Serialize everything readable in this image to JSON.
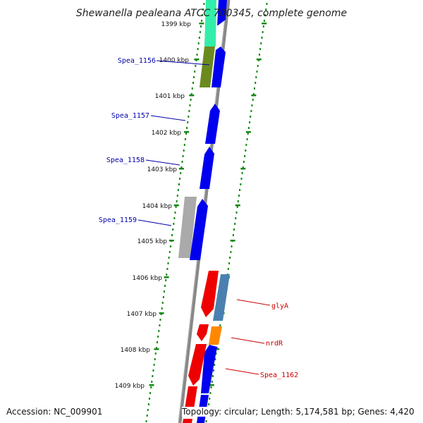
{
  "title": "Shewanella pealeana ATCC 700345, complete genome",
  "footer": {
    "accession": "Accession: NC_009901",
    "topology": "Topology: circular; Length: 5,174,581 bp; Genes: 4,420"
  },
  "colors": {
    "forward_cds": "#0000ee",
    "reverse_cds": "#ee0000",
    "label_forward": "#0000aa",
    "label_reverse": "#cc0000",
    "dots": "#118811",
    "backbone": "#888888",
    "teal": "#33eeaa",
    "olive": "#6b8a1e",
    "gray": "#aaaaaa",
    "steel": "#4a80b0",
    "orange": "#ff8800"
  },
  "ticks": [
    {
      "kbp": 1399,
      "label": "1399 kbp"
    },
    {
      "kbp": 1400,
      "label": "1400 kbp"
    },
    {
      "kbp": 1401,
      "label": "1401 kbp"
    },
    {
      "kbp": 1402,
      "label": "1402 kbp"
    },
    {
      "kbp": 1403,
      "label": "1403 kbp"
    },
    {
      "kbp": 1404,
      "label": "1404 kbp"
    },
    {
      "kbp": 1405,
      "label": "1405 kbp"
    },
    {
      "kbp": 1406,
      "label": "1406 kbp"
    },
    {
      "kbp": 1407,
      "label": "1407 kbp"
    },
    {
      "kbp": 1408,
      "label": "1408 kbp"
    },
    {
      "kbp": 1409,
      "label": "1409 kbp"
    }
  ],
  "gene_labels": [
    {
      "name": "Spea_1156",
      "side": "left",
      "strand": "forward"
    },
    {
      "name": "Spea_1157",
      "side": "left",
      "strand": "forward"
    },
    {
      "name": "Spea_1158",
      "side": "left",
      "strand": "forward"
    },
    {
      "name": "Spea_1159",
      "side": "left",
      "strand": "forward"
    },
    {
      "name": "glyA",
      "side": "right",
      "strand": "reverse"
    },
    {
      "name": "nrdR",
      "side": "right",
      "strand": "reverse"
    },
    {
      "name": "Spea_1162",
      "side": "right",
      "strand": "reverse"
    }
  ]
}
